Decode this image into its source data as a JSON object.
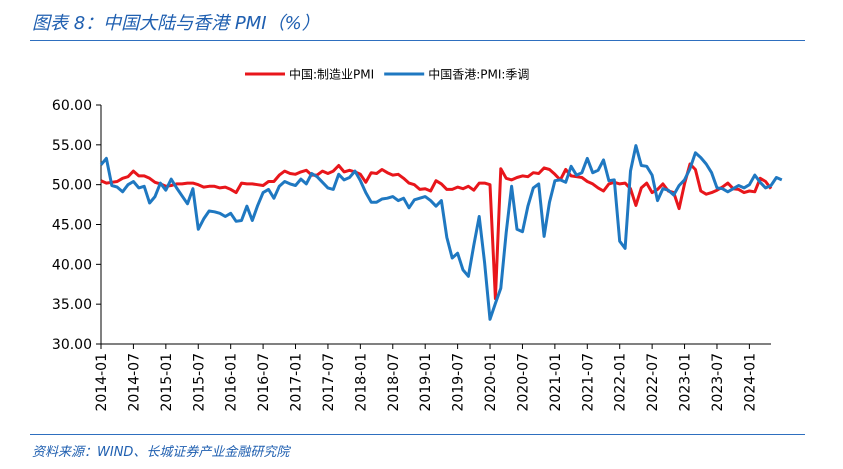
{
  "figure": {
    "title": "图表 8：中国大陆与香港 PMI（%）",
    "source": "资料来源：WIND、长城证券产业金融研究院"
  },
  "chart_data": {
    "type": "line",
    "ylim": [
      30,
      60
    ],
    "yticks": [
      "30.00",
      "35.00",
      "40.00",
      "45.00",
      "50.00",
      "55.00",
      "60.00"
    ],
    "xticks": [
      "2014-01",
      "2014-07",
      "2015-01",
      "2015-07",
      "2016-01",
      "2016-07",
      "2017-01",
      "2017-07",
      "2018-01",
      "2018-07",
      "2019-01",
      "2019-07",
      "2020-01",
      "2020-07",
      "2021-01",
      "2021-07",
      "2022-01",
      "2022-07",
      "2023-01",
      "2023-07",
      "2024-01"
    ],
    "x_start": "2014-01",
    "x_end": "2024-05",
    "legend_position": "top",
    "grid": false,
    "series": [
      {
        "name": "中国:制造业PMI",
        "color": "#e8161b",
        "values": [
          50.5,
          50.2,
          50.3,
          50.4,
          50.8,
          51.0,
          51.7,
          51.1,
          51.1,
          50.8,
          50.3,
          50.1,
          49.8,
          49.9,
          50.1,
          50.1,
          50.2,
          50.2,
          50.0,
          49.7,
          49.8,
          49.8,
          49.6,
          49.7,
          49.4,
          49.0,
          50.2,
          50.1,
          50.1,
          50.0,
          49.9,
          50.4,
          50.4,
          51.2,
          51.7,
          51.4,
          51.3,
          51.6,
          51.8,
          51.2,
          51.2,
          51.7,
          51.4,
          51.7,
          52.4,
          51.6,
          51.8,
          51.6,
          51.3,
          50.3,
          51.5,
          51.4,
          51.9,
          51.5,
          51.2,
          51.3,
          50.8,
          50.2,
          50.0,
          49.4,
          49.5,
          49.2,
          50.5,
          50.1,
          49.4,
          49.4,
          49.7,
          49.5,
          49.8,
          49.3,
          50.2,
          50.2,
          50.0,
          35.7,
          52.0,
          50.8,
          50.6,
          50.9,
          51.1,
          51.0,
          51.5,
          51.4,
          52.1,
          51.9,
          51.3,
          50.6,
          51.9,
          51.1,
          51.0,
          50.9,
          50.4,
          50.1,
          49.6,
          49.2,
          50.1,
          50.3,
          50.1,
          50.2,
          49.5,
          47.4,
          49.6,
          50.2,
          49.0,
          49.4,
          50.1,
          49.2,
          49.0,
          47.0,
          50.1,
          52.6,
          51.9,
          49.2,
          48.8,
          49.0,
          49.3,
          49.7,
          50.2,
          49.5,
          49.4,
          49.0,
          49.2,
          49.1,
          50.8,
          50.4,
          49.5
        ]
      },
      {
        "name": "中国香港:PMI:季调",
        "color": "#1f78c1",
        "values": [
          52.5,
          53.3,
          49.9,
          49.7,
          49.1,
          50.0,
          50.4,
          49.6,
          49.8,
          47.7,
          48.5,
          50.2,
          49.3,
          50.7,
          49.6,
          48.6,
          47.6,
          49.5,
          44.4,
          45.7,
          46.7,
          46.6,
          46.4,
          46.0,
          46.4,
          45.4,
          45.5,
          47.3,
          45.5,
          47.4,
          49.0,
          49.4,
          48.3,
          49.8,
          50.4,
          50.1,
          49.9,
          50.7,
          50.1,
          51.4,
          51.0,
          50.3,
          49.6,
          49.4,
          51.3,
          50.6,
          50.9,
          51.7,
          50.5,
          49.0,
          47.8,
          47.8,
          48.2,
          48.3,
          48.5,
          48.0,
          48.3,
          47.1,
          48.1,
          48.3,
          48.5,
          48.0,
          47.3,
          48.0,
          43.4,
          40.8,
          41.4,
          39.3,
          38.5,
          42.4,
          46.0,
          40.2,
          33.1,
          35.1,
          37.0,
          44.0,
          49.8,
          44.4,
          44.1,
          47.3,
          49.6,
          50.1,
          43.5,
          47.8,
          50.5,
          50.6,
          50.3,
          52.3,
          51.2,
          51.5,
          53.3,
          51.5,
          51.8,
          53.1,
          50.5,
          50.6,
          42.9,
          42.0,
          51.7,
          54.9,
          52.4,
          52.3,
          51.2,
          48.0,
          49.5,
          49.3,
          48.7,
          49.9,
          50.6,
          52.0,
          54.0,
          53.4,
          52.6,
          51.5,
          49.6,
          49.5,
          49.1,
          49.5,
          49.9,
          49.6,
          50.0,
          51.2,
          50.3,
          49.6,
          49.9,
          50.9,
          50.6
        ]
      }
    ]
  }
}
